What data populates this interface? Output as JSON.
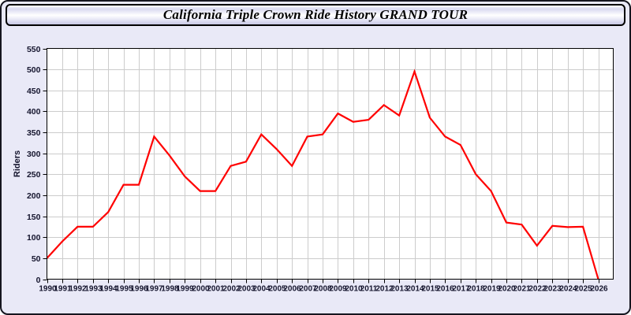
{
  "header": {
    "title": "California Triple Crown Ride History GRAND TOUR"
  },
  "chart_data": {
    "type": "line",
    "title": "California Triple Crown Ride History GRAND TOUR",
    "xlabel": "",
    "ylabel": "Riders",
    "x": [
      1990,
      1991,
      1992,
      1993,
      1994,
      1995,
      1996,
      1997,
      1998,
      1999,
      2000,
      2001,
      2002,
      2003,
      2004,
      2005,
      2006,
      2007,
      2008,
      2009,
      2010,
      2011,
      2012,
      2013,
      2014,
      2015,
      2016,
      2017,
      2018,
      2019,
      2020,
      2021,
      2022,
      2023,
      2024,
      2025,
      2026
    ],
    "series": [
      {
        "name": "Riders",
        "values": [
          50,
          90,
          125,
          125,
          160,
          225,
          225,
          340,
          295,
          245,
          210,
          210,
          270,
          280,
          345,
          310,
          270,
          340,
          345,
          395,
          375,
          380,
          415,
          390,
          495,
          385,
          340,
          320,
          250,
          210,
          135,
          130,
          80,
          127,
          124,
          125,
          0
        ]
      }
    ],
    "ylim": [
      0,
      550
    ],
    "yticks": [
      0,
      50,
      100,
      150,
      200,
      250,
      300,
      350,
      400,
      450,
      500,
      550
    ],
    "grid": "on",
    "legend": "none",
    "colors": {
      "line": "#ff0000",
      "grid": "#cccccc",
      "axis": "#000000",
      "tick_label": "#15152e",
      "plot_background": "#ffffff",
      "page_background": "#e9e9f7"
    }
  }
}
